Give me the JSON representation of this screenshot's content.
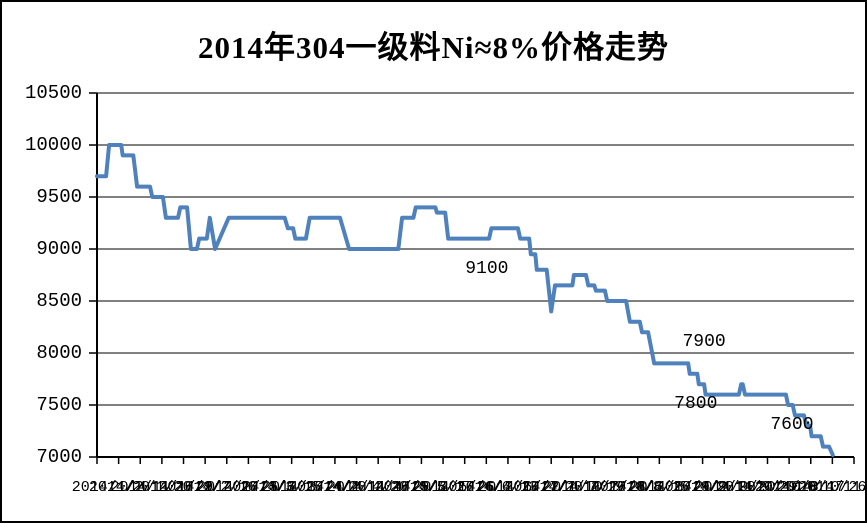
{
  "title": "2014年304一级料Ni≈8%价格走势",
  "chart_data": {
    "type": "line",
    "title": "2014年304一级料Ni≈8%价格走势",
    "ylabel": "",
    "xlabel": "",
    "ylim": [
      7000,
      10500
    ],
    "y_tick_step": 500,
    "y_ticks": [
      "10500",
      "10000",
      "9500",
      "9000",
      "8500",
      "8000",
      "7500",
      "7000"
    ],
    "x_labels": [
      "2014/1/2",
      "2014/1/11",
      "2014/1/20",
      "2014/1/29",
      "2014/2/7",
      "2014/2/16",
      "2014/2/25",
      "2014/3/6",
      "2014/3/15",
      "2014/3/24",
      "2014/4/2",
      "2014/4/11",
      "2014/4/20",
      "2014/4/29",
      "2014/5/8",
      "2014/5/17",
      "2014/5/26",
      "2014/6/4",
      "2014/6/13",
      "2014/6/22",
      "2014/7/1",
      "2014/7/10",
      "2014/7/19",
      "2014/7/28",
      "2014/8/6",
      "2014/8/15",
      "2014/8/24",
      "2014/9/2",
      "2014/9/11",
      "2014/9/20",
      "2014/9/29",
      "2014/10/8",
      "2014/10/17",
      "2014/10/26",
      "2014/11/16"
    ],
    "grid": "horizontal",
    "legend": "none",
    "line_color": "#4F81BD",
    "axis_color": "#000000",
    "series": [
      {
        "name": "304一级料 Ni≈8% 价格",
        "color": "#4F81BD",
        "points": [
          [
            0.0,
            9700
          ],
          [
            0.012,
            9700
          ],
          [
            0.016,
            10000
          ],
          [
            0.032,
            10000
          ],
          [
            0.034,
            9900
          ],
          [
            0.048,
            9900
          ],
          [
            0.053,
            9600
          ],
          [
            0.07,
            9600
          ],
          [
            0.073,
            9500
          ],
          [
            0.087,
            9500
          ],
          [
            0.091,
            9300
          ],
          [
            0.107,
            9300
          ],
          [
            0.11,
            9400
          ],
          [
            0.119,
            9400
          ],
          [
            0.124,
            9000
          ],
          [
            0.132,
            9000
          ],
          [
            0.135,
            9100
          ],
          [
            0.145,
            9100
          ],
          [
            0.149,
            9300
          ],
          [
            0.156,
            9000
          ],
          [
            0.174,
            9300
          ],
          [
            0.248,
            9300
          ],
          [
            0.252,
            9200
          ],
          [
            0.259,
            9200
          ],
          [
            0.262,
            9100
          ],
          [
            0.276,
            9100
          ],
          [
            0.281,
            9300
          ],
          [
            0.321,
            9300
          ],
          [
            0.333,
            9000
          ],
          [
            0.398,
            9000
          ],
          [
            0.403,
            9300
          ],
          [
            0.418,
            9300
          ],
          [
            0.421,
            9400
          ],
          [
            0.447,
            9400
          ],
          [
            0.449,
            9350
          ],
          [
            0.46,
            9350
          ],
          [
            0.464,
            9100
          ],
          [
            0.518,
            9100
          ],
          [
            0.521,
            9200
          ],
          [
            0.556,
            9200
          ],
          [
            0.559,
            9100
          ],
          [
            0.571,
            9100
          ],
          [
            0.573,
            8950
          ],
          [
            0.579,
            8950
          ],
          [
            0.581,
            8800
          ],
          [
            0.594,
            8800
          ],
          [
            0.6,
            8400
          ],
          [
            0.605,
            8650
          ],
          [
            0.628,
            8650
          ],
          [
            0.63,
            8750
          ],
          [
            0.646,
            8750
          ],
          [
            0.649,
            8650
          ],
          [
            0.657,
            8650
          ],
          [
            0.659,
            8600
          ],
          [
            0.671,
            8600
          ],
          [
            0.674,
            8500
          ],
          [
            0.699,
            8500
          ],
          [
            0.704,
            8300
          ],
          [
            0.717,
            8300
          ],
          [
            0.72,
            8200
          ],
          [
            0.728,
            8200
          ],
          [
            0.736,
            7900
          ],
          [
            0.781,
            7900
          ],
          [
            0.783,
            7800
          ],
          [
            0.793,
            7800
          ],
          [
            0.795,
            7700
          ],
          [
            0.802,
            7700
          ],
          [
            0.804,
            7600
          ],
          [
            0.848,
            7600
          ],
          [
            0.851,
            7700
          ],
          [
            0.853,
            7700
          ],
          [
            0.856,
            7600
          ],
          [
            0.91,
            7600
          ],
          [
            0.913,
            7500
          ],
          [
            0.919,
            7500
          ],
          [
            0.922,
            7400
          ],
          [
            0.934,
            7400
          ],
          [
            0.937,
            7300
          ],
          [
            0.942,
            7300
          ],
          [
            0.944,
            7200
          ],
          [
            0.956,
            7200
          ],
          [
            0.959,
            7100
          ],
          [
            0.967,
            7100
          ],
          [
            0.972,
            7020
          ]
        ]
      }
    ],
    "annotations": [
      {
        "text": "9100",
        "x": 0.515,
        "value": 9100,
        "side": "below"
      },
      {
        "text": "7900",
        "x": 0.802,
        "value": 7900,
        "side": "above"
      },
      {
        "text": "7800",
        "x": 0.791,
        "value": 7800,
        "side": "below"
      },
      {
        "text": "7600",
        "x": 0.918,
        "value": 7600,
        "side": "below"
      }
    ]
  }
}
